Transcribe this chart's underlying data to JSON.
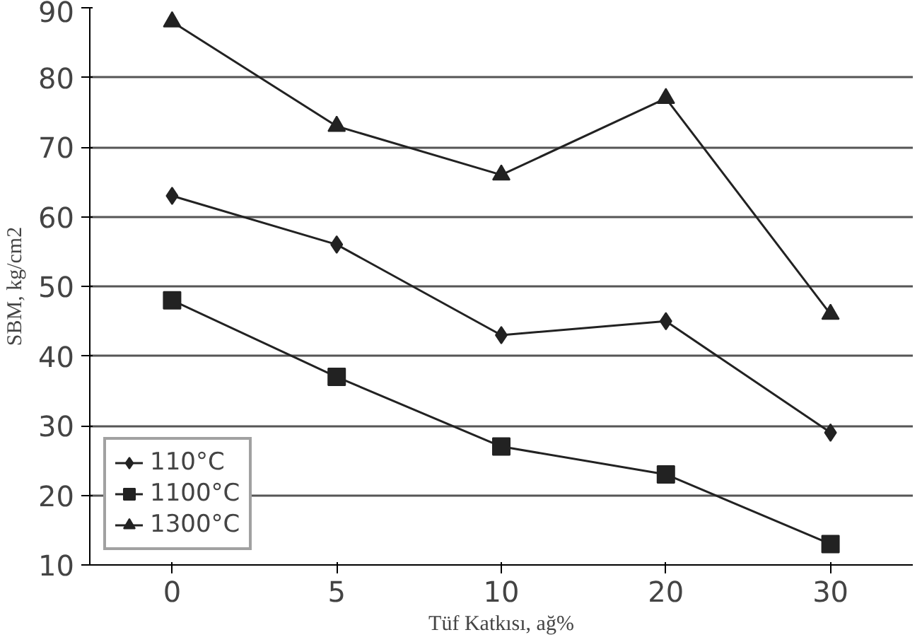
{
  "chart_data": {
    "type": "line",
    "xlabel": "Tüf Katkısı, ağ%",
    "ylabel": "SBM, kg/cm2",
    "categories": [
      "0",
      "5",
      "10",
      "20",
      "30"
    ],
    "series": [
      {
        "name": "110°C",
        "color": "#222222",
        "marker": "diamond",
        "values": [
          63,
          56,
          43,
          45,
          29
        ]
      },
      {
        "name": "1100°C",
        "color": "#222222",
        "marker": "square",
        "values": [
          48,
          37,
          27,
          23,
          13
        ]
      },
      {
        "name": "1300°C",
        "color": "#222222",
        "marker": "triangle",
        "values": [
          88,
          73,
          66,
          77,
          46
        ]
      }
    ],
    "ylim": [
      10,
      90
    ],
    "yticks": [
      10,
      20,
      30,
      40,
      50,
      60,
      70,
      80,
      90
    ],
    "grid": "y",
    "legend": "bottom left",
    "line_style": "solid"
  }
}
